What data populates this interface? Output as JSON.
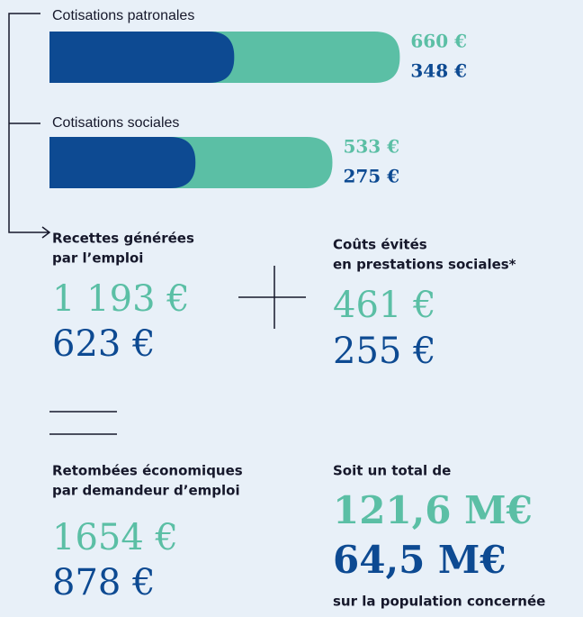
{
  "branches": [
    {
      "label": "Cotisations patronales",
      "values": [
        {
          "value": 660,
          "label": "660 €"
        },
        {
          "value": 348,
          "label": "348 €"
        }
      ]
    },
    {
      "label": "Cotisations sociales",
      "values": [
        {
          "value": 533,
          "label": "533 €"
        },
        {
          "value": 275,
          "label": "275 €"
        }
      ]
    }
  ],
  "recettes": {
    "lines": [
      "Recettes générées",
      "par l’emploi"
    ],
    "values": [
      "1 193 €",
      "623 €"
    ]
  },
  "couts": {
    "lines": [
      "Coûts évités",
      "en prestations sociales*"
    ],
    "values": [
      "461 €",
      "255 €"
    ]
  },
  "retombees": {
    "lines": [
      "Retombées économiques",
      "par demandeur d’emploi"
    ],
    "values": [
      "1654 €",
      "878 €"
    ]
  },
  "total": {
    "lines": [
      "Soit un total de"
    ],
    "values": [
      "121,6 M€",
      "64,5 M€"
    ],
    "footer": "sur la population concernée"
  }
}
